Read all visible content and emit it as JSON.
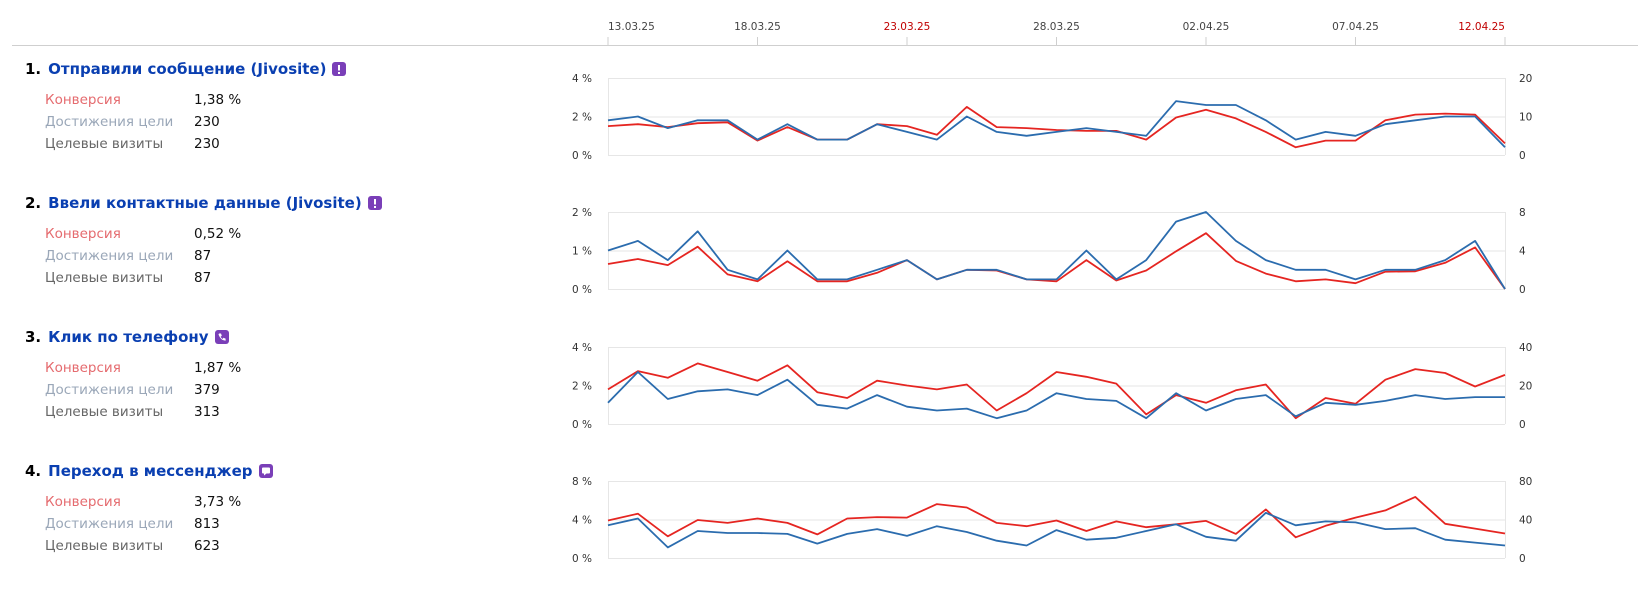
{
  "timeline": {
    "ticks": [
      {
        "label": "13.03.25",
        "weekend": false
      },
      {
        "label": "18.03.25",
        "weekend": false
      },
      {
        "label": "23.03.25",
        "weekend": true
      },
      {
        "label": "28.03.25",
        "weekend": false
      },
      {
        "label": "02.04.25",
        "weekend": false
      },
      {
        "label": "07.04.25",
        "weekend": false
      },
      {
        "label": "12.04.25",
        "weekend": true
      }
    ],
    "weekend_color": "#c00000"
  },
  "colors": {
    "conversion": "#e52521",
    "visits": "#2b6cae",
    "link": "#0a3fb1",
    "badge": "#7a3fb8"
  },
  "goals": [
    {
      "number": "1.",
      "name": "Отправили сообщение (Jivosite)",
      "icon": "alert-icon",
      "metrics": [
        {
          "label": "Конверсия",
          "value": "1,38 %"
        },
        {
          "label": "Достижения цели",
          "value": "230"
        },
        {
          "label": "Целевые визиты",
          "value": "230"
        }
      ]
    },
    {
      "number": "2.",
      "name": "Ввели контактные данные (Jivosite)",
      "icon": "alert-icon",
      "metrics": [
        {
          "label": "Конверсия",
          "value": "0,52 %"
        },
        {
          "label": "Достижения цели",
          "value": "87"
        },
        {
          "label": "Целевые визиты",
          "value": "87"
        }
      ]
    },
    {
      "number": "3.",
      "name": "Клик по телефону",
      "icon": "phone-icon",
      "metrics": [
        {
          "label": "Конверсия",
          "value": "1,87 %"
        },
        {
          "label": "Достижения цели",
          "value": "379"
        },
        {
          "label": "Целевые визиты",
          "value": "313"
        }
      ]
    },
    {
      "number": "4.",
      "name": "Переход в мессенджер",
      "icon": "chat-icon",
      "metrics": [
        {
          "label": "Конверсия",
          "value": "3,73 %"
        },
        {
          "label": "Достижения цели",
          "value": "813"
        },
        {
          "label": "Целевые визиты",
          "value": "623"
        }
      ]
    }
  ],
  "chart_data": [
    {
      "type": "line",
      "y_left": {
        "ticks": [
          "4 %",
          "2 %",
          "0 %"
        ],
        "range": [
          0,
          4
        ]
      },
      "y_right": {
        "ticks": [
          "20",
          "10",
          "0"
        ],
        "range": [
          0,
          20
        ]
      },
      "series": [
        {
          "axis": "left",
          "values": [
            1.5,
            1.6,
            1.45,
            1.65,
            1.7,
            0.75,
            1.45,
            0.8,
            0.8,
            1.6,
            1.5,
            1.05,
            2.5,
            1.45,
            1.4,
            1.3,
            1.25,
            1.25,
            0.8,
            1.95,
            2.35,
            1.9,
            1.2,
            0.4,
            0.75,
            0.75,
            1.8,
            2.1,
            2.15,
            2.1,
            0.6
          ]
        },
        {
          "axis": "right",
          "values": [
            9,
            10,
            7,
            9,
            9,
            4,
            8,
            4,
            4,
            8,
            6,
            4,
            10,
            6,
            5,
            6,
            7,
            6,
            5,
            14,
            13,
            13,
            9,
            4,
            6,
            5,
            8,
            9,
            10,
            10,
            2
          ]
        }
      ]
    },
    {
      "type": "line",
      "y_left": {
        "ticks": [
          "2 %",
          "1 %",
          "0 %"
        ],
        "range": [
          0,
          2
        ]
      },
      "y_right": {
        "ticks": [
          "8",
          "4",
          "0"
        ],
        "range": [
          0,
          8
        ]
      },
      "series": [
        {
          "axis": "left",
          "values": [
            0.65,
            0.78,
            0.62,
            1.1,
            0.38,
            0.2,
            0.72,
            0.2,
            0.2,
            0.42,
            0.75,
            0.25,
            0.5,
            0.48,
            0.25,
            0.2,
            0.75,
            0.22,
            0.48,
            0.98,
            1.45,
            0.73,
            0.4,
            0.2,
            0.25,
            0.15,
            0.45,
            0.46,
            0.68,
            1.08,
            0.0
          ]
        },
        {
          "axis": "right",
          "values": [
            4,
            5,
            3,
            6,
            2,
            1,
            4,
            1,
            1,
            2,
            3,
            1,
            2,
            2,
            1,
            1,
            4,
            1,
            3,
            7,
            8,
            5,
            3,
            2,
            2,
            1,
            2,
            2,
            3,
            5,
            0
          ]
        }
      ]
    },
    {
      "type": "line",
      "y_left": {
        "ticks": [
          "4 %",
          "2 %",
          "0 %"
        ],
        "range": [
          0,
          4
        ]
      },
      "y_right": {
        "ticks": [
          "40",
          "20",
          "0"
        ],
        "range": [
          0,
          40
        ]
      },
      "series": [
        {
          "axis": "left",
          "values": [
            1.8,
            2.75,
            2.4,
            3.15,
            2.7,
            2.25,
            3.05,
            1.65,
            1.35,
            2.25,
            2.0,
            1.8,
            2.05,
            0.7,
            1.6,
            2.7,
            2.45,
            2.1,
            0.5,
            1.5,
            1.1,
            1.75,
            2.05,
            0.3,
            1.35,
            1.05,
            2.3,
            2.85,
            2.65,
            1.95,
            2.55
          ]
        },
        {
          "axis": "right",
          "values": [
            11,
            27,
            13,
            17,
            18,
            15,
            23,
            10,
            8,
            15,
            9,
            7,
            8,
            3,
            7,
            16,
            13,
            12,
            3,
            16,
            7,
            13,
            15,
            4,
            11,
            10,
            12,
            15,
            13,
            14,
            14
          ]
        }
      ]
    },
    {
      "type": "line",
      "y_left": {
        "ticks": [
          "8 %",
          "4 %",
          "0 %"
        ],
        "range": [
          0,
          8
        ]
      },
      "y_right": {
        "ticks": [
          "80",
          "40",
          "0"
        ],
        "range": [
          0,
          80
        ]
      },
      "series": [
        {
          "axis": "left",
          "values": [
            3.9,
            4.6,
            2.25,
            3.95,
            3.65,
            4.1,
            3.65,
            2.45,
            4.1,
            4.25,
            4.2,
            5.6,
            5.25,
            3.65,
            3.3,
            3.9,
            2.8,
            3.8,
            3.2,
            3.5,
            3.85,
            2.5,
            5.05,
            2.15,
            3.35,
            4.2,
            4.95,
            6.35,
            3.55,
            3.05,
            2.55
          ]
        },
        {
          "axis": "right",
          "values": [
            34,
            41,
            11,
            28,
            26,
            26,
            25,
            15,
            25,
            30,
            23,
            33,
            27,
            18,
            13,
            29,
            19,
            21,
            28,
            35,
            22,
            18,
            47,
            34,
            38,
            37,
            30,
            31,
            19,
            16,
            13
          ]
        }
      ]
    }
  ]
}
